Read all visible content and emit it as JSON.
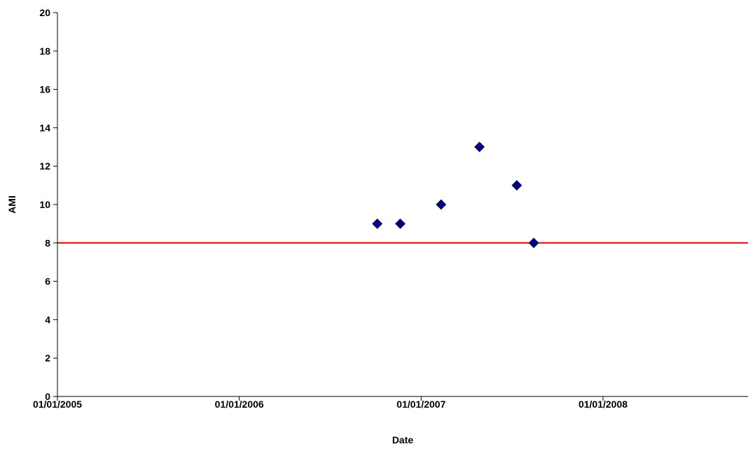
{
  "chart_data": {
    "type": "scatter",
    "title": "",
    "xlabel": "Date",
    "ylabel": "AMI",
    "x_type": "date",
    "xlim": [
      "2005-01-01",
      "2008-10-01"
    ],
    "ylim": [
      0,
      20
    ],
    "y_ticks": [
      0,
      2,
      4,
      6,
      8,
      10,
      12,
      14,
      16,
      18,
      20
    ],
    "x_ticks": [
      {
        "date": "2005-01-01",
        "label": "01/01/2005"
      },
      {
        "date": "2006-01-01",
        "label": "01/01/2006"
      },
      {
        "date": "2007-01-01",
        "label": "01/01/2007"
      },
      {
        "date": "2008-01-01",
        "label": "01/01/2008"
      }
    ],
    "grid": false,
    "legend": "none",
    "series": [
      {
        "marker": "diamond",
        "color": "#000080",
        "points": [
          {
            "x": "2006-10-05",
            "y": 9
          },
          {
            "x": "2006-11-20",
            "y": 9
          },
          {
            "x": "2007-02-10",
            "y": 10
          },
          {
            "x": "2007-04-28",
            "y": 13
          },
          {
            "x": "2007-07-12",
            "y": 11
          },
          {
            "x": "2007-08-15",
            "y": 8
          }
        ]
      }
    ],
    "reference_lines": [
      {
        "orientation": "horizontal",
        "y": 8,
        "color": "#E00000"
      }
    ]
  }
}
